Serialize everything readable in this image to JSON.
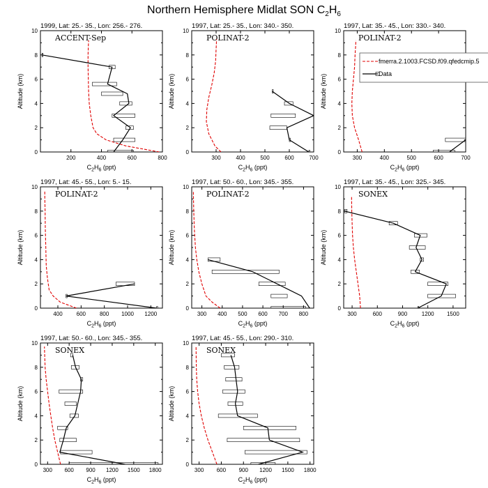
{
  "figure": {
    "title": "Northern Hemisphere Midlat SON C",
    "title_sub1": "2",
    "title_mid": "H",
    "title_sub2": "6"
  },
  "legend": {
    "model_label": "fmerra.2.1003.FCSD.f09.qfedcmip.5",
    "data_label": "Data",
    "model_color": "#e00000",
    "data_color": "#000000"
  },
  "chart_data": [
    {
      "type": "line",
      "title": "1999, Lat: 25.- 35., Lon: 256.- 276.",
      "campaign": "ACCENT-Sep",
      "xlabel": "C2H6 (ppt)",
      "ylabel": "Altitude (km)",
      "xlim": [
        0,
        800
      ],
      "ylim": [
        0,
        10
      ],
      "xticks": [
        200,
        400,
        600,
        800
      ],
      "yticks": [
        0,
        2,
        4,
        6,
        8,
        10
      ],
      "model": {
        "x": [
          780,
          560,
          430,
          370,
          345,
          330,
          320,
          316,
          314,
          312,
          312,
          314,
          316
        ],
        "y": [
          0,
          0.5,
          1,
          1.5,
          2,
          3,
          4,
          5,
          6,
          7,
          8,
          8.7,
          9.2
        ]
      },
      "data": {
        "y": [
          0,
          1,
          2,
          3,
          4,
          4.8,
          5.6,
          7,
          8
        ],
        "mean": [
          480,
          540,
          590,
          480,
          580,
          570,
          440,
          470,
          10
        ],
        "lo": [
          440,
          480,
          560,
          470,
          520,
          400,
          340,
          450,
          10
        ],
        "hi": [
          610,
          620,
          610,
          620,
          600,
          540,
          500,
          490,
          10
        ]
      }
    },
    {
      "type": "line",
      "title": "1997, Lat: 25.- 35., Lon: 340.- 350.",
      "campaign": "POLINAT-2",
      "xlabel": "C2H6 (ppt)",
      "ylabel": "Altitude (km)",
      "xlim": [
        200,
        700
      ],
      "ylim": [
        0,
        10
      ],
      "xticks": [
        300,
        400,
        500,
        600,
        700
      ],
      "yticks": [
        0,
        2,
        4,
        6,
        8,
        10
      ],
      "model": {
        "x": [
          320,
          295,
          270,
          260,
          262,
          270,
          282,
          292,
          298,
          300,
          302
        ],
        "y": [
          0,
          0.5,
          1.5,
          2.5,
          3.5,
          4.5,
          5.5,
          6.5,
          7.5,
          8.5,
          9.3
        ]
      },
      "data": {
        "y": [
          0,
          1,
          2,
          3,
          4,
          5
        ],
        "mean": [
          680,
          600,
          590,
          700,
          600,
          530
        ],
        "lo": [
          680,
          600,
          520,
          525,
          580,
          530
        ],
        "hi": [
          680,
          600,
          590,
          625,
          615,
          530
        ]
      }
    },
    {
      "type": "line",
      "title": "1997, Lat: 35.- 45., Lon: 330.- 340.",
      "campaign": "POLINAT-2",
      "xlabel": "C2H6 (ppt)",
      "ylabel": "Altitude (km)",
      "xlim": [
        250,
        700
      ],
      "ylim": [
        0,
        10
      ],
      "xticks": [
        300,
        400,
        500,
        600,
        700
      ],
      "yticks": [
        0,
        2,
        4,
        6,
        8,
        10
      ],
      "model": {
        "x": [
          318,
          305,
          290,
          282,
          280,
          282,
          286,
          290,
          292,
          294,
          295
        ],
        "y": [
          0,
          1,
          2,
          3,
          4,
          5,
          6,
          7,
          8,
          8.7,
          9.2
        ]
      },
      "data": {
        "y": [
          0,
          1
        ],
        "mean": [
          640,
          700
        ],
        "lo": [
          580,
          625
        ],
        "hi": [
          660,
          705
        ]
      }
    },
    {
      "type": "line",
      "title": "1997, Lat: 45.- 55., Lon: 5.- 15.",
      "campaign": "POLINAT-2",
      "xlabel": "C2H6 (ppt)",
      "ylabel": "Altitude (km)",
      "xlim": [
        250,
        1300
      ],
      "ylim": [
        0,
        10
      ],
      "xticks": [
        400,
        600,
        800,
        1000,
        1200
      ],
      "yticks": [
        0,
        2,
        4,
        6,
        8,
        10
      ],
      "model": {
        "x": [
          560,
          420,
          360,
          325,
          310,
          300,
          296,
          292,
          290,
          288,
          287
        ],
        "y": [
          0,
          0.5,
          1,
          1.5,
          2.5,
          3.5,
          5,
          6.5,
          8,
          9,
          9.7
        ]
      },
      "data": {
        "y": [
          0,
          1,
          2
        ],
        "mean": [
          1250,
          470,
          1060
        ],
        "lo": [
          1250,
          470,
          900
        ],
        "hi": [
          1250,
          480,
          1060
        ]
      }
    },
    {
      "type": "line",
      "title": "1997, Lat: 50.- 60., Lon: 345.- 355.",
      "campaign": "POLINAT-2",
      "xlabel": "C2H6 (ppt)",
      "ylabel": "Altitude (km)",
      "xlim": [
        250,
        850
      ],
      "ylim": [
        0,
        10
      ],
      "xticks": [
        300,
        400,
        500,
        600,
        700,
        800
      ],
      "yticks": [
        0,
        2,
        4,
        6,
        8,
        10
      ],
      "model": {
        "x": [
          390,
          350,
          320,
          300,
          285,
          275,
          268,
          263,
          260,
          258
        ],
        "y": [
          0,
          0.5,
          1,
          2,
          3,
          4,
          5,
          6.5,
          8,
          9.7
        ]
      },
      "data": {
        "y": [
          0,
          1,
          2,
          3,
          4
        ],
        "mean": [
          830,
          790,
          670,
          550,
          330
        ],
        "lo": [
          640,
          640,
          580,
          350,
          330
        ],
        "hi": [
          810,
          720,
          710,
          680,
          390
        ]
      }
    },
    {
      "type": "line",
      "title": "1997, Lat: 35.- 45., Lon: 325.- 345.",
      "campaign": "SONEX",
      "xlabel": "C2H6 (ppt)",
      "ylabel": "Altitude (km)",
      "xlim": [
        200,
        1650
      ],
      "ylim": [
        0,
        10
      ],
      "xticks": [
        300,
        600,
        900,
        1200,
        1500
      ],
      "yticks": [
        0,
        2,
        4,
        6,
        8,
        10
      ],
      "model": {
        "x": [
          400,
          390,
          370,
          350,
          330,
          315,
          305,
          300,
          296,
          294
        ],
        "y": [
          0,
          1,
          2,
          3,
          4,
          5,
          6,
          7,
          8,
          9.2
        ]
      },
      "data": {
        "y": [
          0,
          1,
          2,
          3,
          4,
          5,
          6,
          7,
          8
        ],
        "mean": [
          1080,
          1360,
          1420,
          1050,
          1130,
          1060,
          1110,
          790,
          210
        ],
        "lo": [
          1080,
          1200,
          1200,
          1000,
          1110,
          980,
          1040,
          740,
          210
        ],
        "hi": [
          1080,
          1530,
          1440,
          1100,
          1150,
          1170,
          1190,
          840,
          240
        ]
      }
    },
    {
      "type": "line",
      "title": "1997, Lat: 50.- 60., Lon: 345.- 355.",
      "campaign": "SONEX",
      "xlabel": "C2H6 (ppt)",
      "ylabel": "Altitude (km)",
      "xlim": [
        200,
        1900
      ],
      "ylim": [
        0,
        10
      ],
      "xticks": [
        300,
        600,
        900,
        1200,
        1500,
        1800
      ],
      "yticks": [
        0,
        2,
        4,
        6,
        8,
        10
      ],
      "model": {
        "x": [
          480,
          440,
          400,
          370,
          345,
          320,
          300,
          280,
          265,
          255
        ],
        "y": [
          0,
          1,
          2,
          3,
          4,
          5,
          6,
          7,
          8,
          9.7
        ]
      },
      "data": {
        "y": [
          0,
          1,
          2,
          3,
          4,
          5,
          6,
          7,
          8,
          9
        ],
        "mean": [
          1380,
          470,
          520,
          560,
          680,
          720,
          760,
          770,
          690,
          650
        ],
        "lo": [
          600,
          480,
          470,
          440,
          610,
          540,
          460,
          760,
          630,
          620
        ],
        "hi": [
          1840,
          920,
          700,
          580,
          730,
          700,
          790,
          790,
          740,
          650
        ]
      }
    },
    {
      "type": "line",
      "title": "1997, Lat: 45.- 55., Lon: 290.- 310.",
      "campaign": "SONEX",
      "xlabel": "C2H6 (ppt)",
      "ylabel": "Altitude (km)",
      "xlim": [
        200,
        1850
      ],
      "ylim": [
        0,
        10
      ],
      "xticks": [
        300,
        600,
        900,
        1200,
        1500,
        1800
      ],
      "yticks": [
        0,
        2,
        4,
        6,
        8,
        10
      ],
      "model": {
        "x": [
          540,
          480,
          420,
          370,
          330,
          300,
          280,
          268,
          262,
          258
        ],
        "y": [
          0,
          1,
          2,
          3,
          4,
          5,
          6,
          7,
          8,
          9.7
        ]
      },
      "data": {
        "y": [
          0,
          1,
          2,
          3,
          4,
          5,
          6,
          7,
          8,
          9
        ],
        "mean": [
          1100,
          1700,
          1250,
          1230,
          820,
          790,
          820,
          800,
          780,
          730
        ],
        "lo": [
          1000,
          920,
          680,
          900,
          560,
          690,
          620,
          660,
          640,
          600
        ],
        "hi": [
          1330,
          1760,
          1660,
          1610,
          1090,
          890,
          920,
          880,
          840,
          780
        ]
      }
    }
  ]
}
